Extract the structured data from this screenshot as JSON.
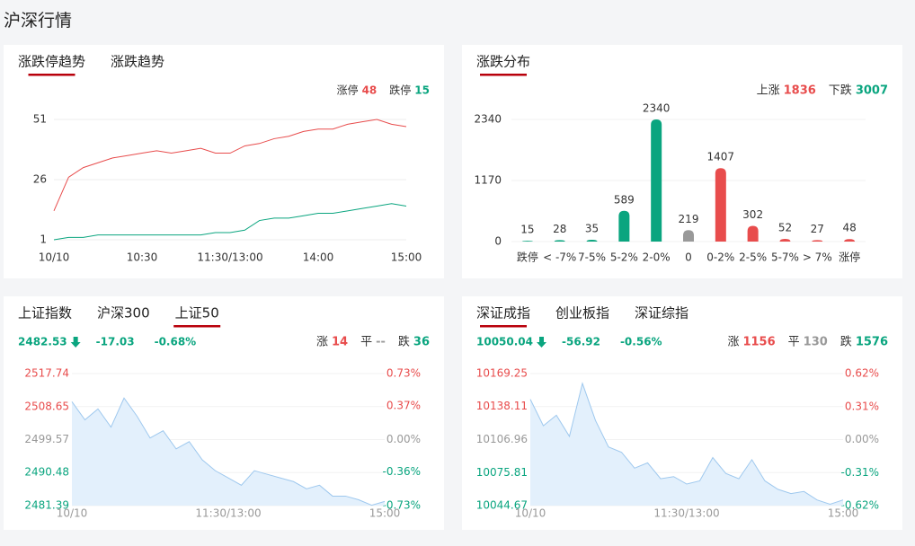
{
  "title": "沪深行情",
  "chart_data": [
    {
      "type": "line",
      "tabs": [
        "涨跌停趋势",
        "涨跌趋势"
      ],
      "active_tab": 0,
      "x": [
        0,
        10,
        20,
        30,
        40,
        50,
        60,
        70,
        80,
        90,
        100,
        110,
        120,
        130,
        140,
        150,
        160,
        170,
        180,
        190,
        200,
        210,
        220,
        230,
        240
      ],
      "xlim": [
        0,
        240
      ],
      "xticks": [
        {
          "value": 0,
          "label": "10/10"
        },
        {
          "value": 60,
          "label": "10:30"
        },
        {
          "value": 120,
          "label": "11:30/13:00"
        },
        {
          "value": 180,
          "label": "14:00"
        },
        {
          "value": 240,
          "label": "15:00"
        }
      ],
      "ylim": [
        1,
        51
      ],
      "yticks": [
        1,
        26,
        51
      ],
      "grid": true,
      "series": [
        {
          "name": "涨停",
          "total": 48,
          "color": "#e84c4c",
          "values": [
            13,
            27,
            31,
            33,
            35,
            36,
            37,
            38,
            37,
            38,
            39,
            37,
            37,
            40,
            41,
            43,
            44,
            46,
            47,
            47,
            49,
            50,
            51,
            49,
            48
          ]
        },
        {
          "name": "跌停",
          "total": 15,
          "color": "#0aa57f",
          "values": [
            1,
            2,
            2,
            3,
            3,
            3,
            3,
            3,
            3,
            3,
            3,
            4,
            4,
            5,
            9,
            10,
            10,
            11,
            12,
            12,
            13,
            14,
            15,
            16,
            15
          ]
        }
      ]
    },
    {
      "type": "bar",
      "tabs": [
        "涨跌分布"
      ],
      "active_tab": 0,
      "stats": [
        {
          "label": "上涨",
          "value": 1836,
          "color": "#e84c4c"
        },
        {
          "label": "下跌",
          "value": 3007,
          "color": "#0aa57f"
        }
      ],
      "categories": [
        "跌停",
        "< -7%",
        "7-5%",
        "5-2%",
        "2-0%",
        "0",
        "0-2%",
        "2-5%",
        "5-7%",
        "> 7%",
        "涨停"
      ],
      "values": [
        15,
        28,
        35,
        589,
        2340,
        219,
        1407,
        302,
        52,
        27,
        48
      ],
      "colors": [
        "#0aa57f",
        "#0aa57f",
        "#0aa57f",
        "#0aa57f",
        "#0aa57f",
        "#999999",
        "#e84c4c",
        "#e84c4c",
        "#e84c4c",
        "#e84c4c",
        "#e84c4c"
      ],
      "ylim": [
        0,
        2340
      ],
      "yticks": [
        0,
        1170,
        2340
      ],
      "grid": true
    },
    {
      "type": "area",
      "tabs": [
        "上证指数",
        "沪深300",
        "上证50"
      ],
      "active_tab": 2,
      "quote": {
        "price": 2482.53,
        "change": -17.03,
        "change_pct": "-0.68%"
      },
      "stats": [
        {
          "label": "涨",
          "value": 14,
          "color": "#e84c4c"
        },
        {
          "label": "平",
          "value": "--",
          "color": "#999999"
        },
        {
          "label": "跌",
          "value": 36,
          "color": "#0aa57f"
        }
      ],
      "x": [
        0,
        10,
        20,
        30,
        40,
        50,
        60,
        70,
        80,
        90,
        100,
        110,
        120,
        130,
        140,
        150,
        160,
        170,
        180,
        190,
        200,
        210,
        220,
        230,
        240
      ],
      "xlim": [
        0,
        240
      ],
      "xticks": [
        {
          "value": 0,
          "label": "10/10"
        },
        {
          "value": 120,
          "label": "11:30/13:00"
        },
        {
          "value": 240,
          "label": "15:00"
        }
      ],
      "ylim": [
        2481.39,
        2517.74
      ],
      "yticks": [
        2481.39,
        2490.48,
        2499.57,
        2508.65,
        2517.74
      ],
      "y2lim": [
        -0.73,
        0.73
      ],
      "y2ticks": [
        {
          "value": -0.73,
          "label": "-0.73%"
        },
        {
          "value": -0.36,
          "label": "-0.36%"
        },
        {
          "value": 0,
          "label": "0.00%"
        },
        {
          "value": 0.37,
          "label": "0.37%"
        },
        {
          "value": 0.73,
          "label": "0.73%"
        }
      ],
      "grid": true,
      "color": "#9ec8ee",
      "values": [
        2510,
        2505,
        2508,
        2503,
        2511,
        2506,
        2500,
        2502,
        2497,
        2499,
        2494,
        2491,
        2489,
        2487,
        2491,
        2490,
        2489,
        2488,
        2486,
        2487,
        2484,
        2484,
        2483,
        2481.5,
        2482.53
      ]
    },
    {
      "type": "area",
      "tabs": [
        "深证成指",
        "创业板指",
        "深证综指"
      ],
      "active_tab": 0,
      "quote": {
        "price": 10050.04,
        "change": -56.92,
        "change_pct": "-0.56%"
      },
      "stats": [
        {
          "label": "涨",
          "value": 1156,
          "color": "#e84c4c"
        },
        {
          "label": "平",
          "value": 130,
          "color": "#999999"
        },
        {
          "label": "跌",
          "value": 1576,
          "color": "#0aa57f"
        }
      ],
      "x": [
        0,
        10,
        20,
        30,
        40,
        50,
        60,
        70,
        80,
        90,
        100,
        110,
        120,
        130,
        140,
        150,
        160,
        170,
        180,
        190,
        200,
        210,
        220,
        230,
        240
      ],
      "xlim": [
        0,
        240
      ],
      "xticks": [
        {
          "value": 0,
          "label": "10/10"
        },
        {
          "value": 120,
          "label": "11:30/13:00"
        },
        {
          "value": 240,
          "label": "15:00"
        }
      ],
      "ylim": [
        10044.67,
        10169.25
      ],
      "yticks": [
        10044.67,
        10075.81,
        10106.96,
        10138.11,
        10169.25
      ],
      "y2lim": [
        -0.62,
        0.62
      ],
      "y2ticks": [
        {
          "value": -0.62,
          "label": "-0.62%"
        },
        {
          "value": -0.31,
          "label": "-0.31%"
        },
        {
          "value": 0,
          "label": "0.00%"
        },
        {
          "value": 0.31,
          "label": "0.31%"
        },
        {
          "value": 0.62,
          "label": "0.62%"
        }
      ],
      "grid": true,
      "color": "#9ec8ee",
      "values": [
        10145,
        10120,
        10130,
        10110,
        10160,
        10125,
        10100,
        10095,
        10080,
        10085,
        10070,
        10072,
        10065,
        10068,
        10090,
        10075,
        10070,
        10088,
        10068,
        10060,
        10056,
        10058,
        10050,
        10046,
        10050.04
      ]
    }
  ]
}
